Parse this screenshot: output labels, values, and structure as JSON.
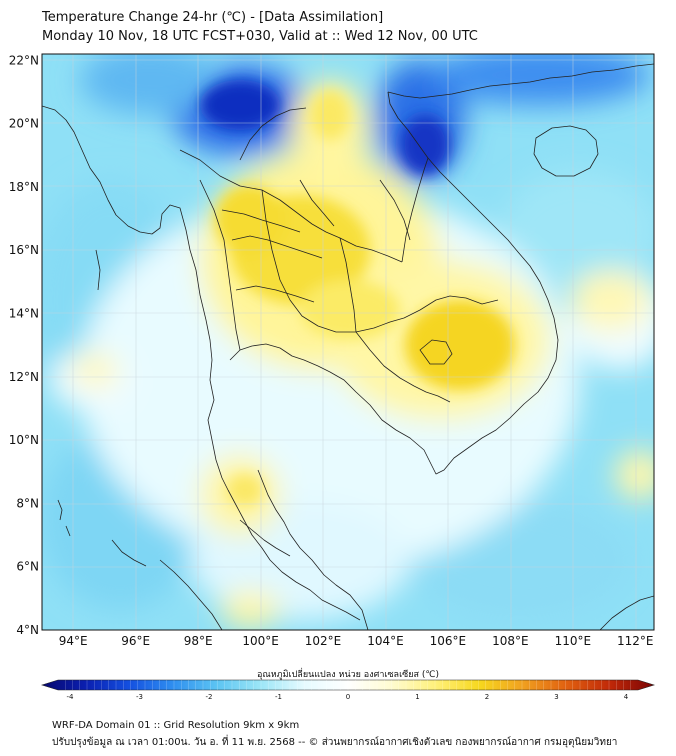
{
  "title": {
    "line1": "Temperature Change 24-hr (℃) - [Data Assimilation]",
    "line2": "Monday 10 Nov, 18 UTC FCST+030, Valid at :: Wed 12 Nov, 00 UTC"
  },
  "map": {
    "lat_labels": [
      "22°N",
      "20°N",
      "18°N",
      "16°N",
      "14°N",
      "12°N",
      "10°N",
      "8°N",
      "6°N",
      "4°N"
    ],
    "lon_labels": [
      "94°E",
      "96°E",
      "98°E",
      "100°E",
      "102°E",
      "104°E",
      "106°E",
      "108°E",
      "110°E",
      "112°E"
    ],
    "extent": {
      "lon_min": 93,
      "lon_max": 112.6,
      "lat_min": 4,
      "lat_max": 22.2
    },
    "grid": true,
    "colors": {
      "cold_dark": "#0a1fb0",
      "cold": "#3b8ff0",
      "cool": "#7fd8f5",
      "neutral": "#e8fbff",
      "warm": "#fff59a",
      "hot": "#f4d21e",
      "coastline": "#222222"
    }
  },
  "colorbar": {
    "label": "อุณหภูมิเปลี่ยนแปลง หน่วย องศาเซลเซียส (℃)",
    "ticks": [
      "-4",
      "-3",
      "-2",
      "-1",
      "0",
      "1",
      "2",
      "3",
      "4"
    ],
    "min": -4,
    "max": 4,
    "stops": [
      "#08086e",
      "#0a1fb0",
      "#1450e0",
      "#2f8ff0",
      "#5cc4f2",
      "#9ce6f7",
      "#e6fbff",
      "#ffffff",
      "#fffbd0",
      "#fff07a",
      "#f7d81e",
      "#f0a020",
      "#e06010",
      "#c02808",
      "#7a0404"
    ]
  },
  "footer": {
    "line1": "WRF-DA Domain 01 :: Grid Resolution 9km x 9km",
    "line2": "ปรับปรุงข้อมูล ณ เวลา 01:00น. วัน อ. ที่ 11 พ.ย. 2568 -- © ส่วนพยากรณ์อากาศเชิงตัวเลข กองพยากรณ์อากาศ กรมอุตุนิยมวิทยา"
  }
}
